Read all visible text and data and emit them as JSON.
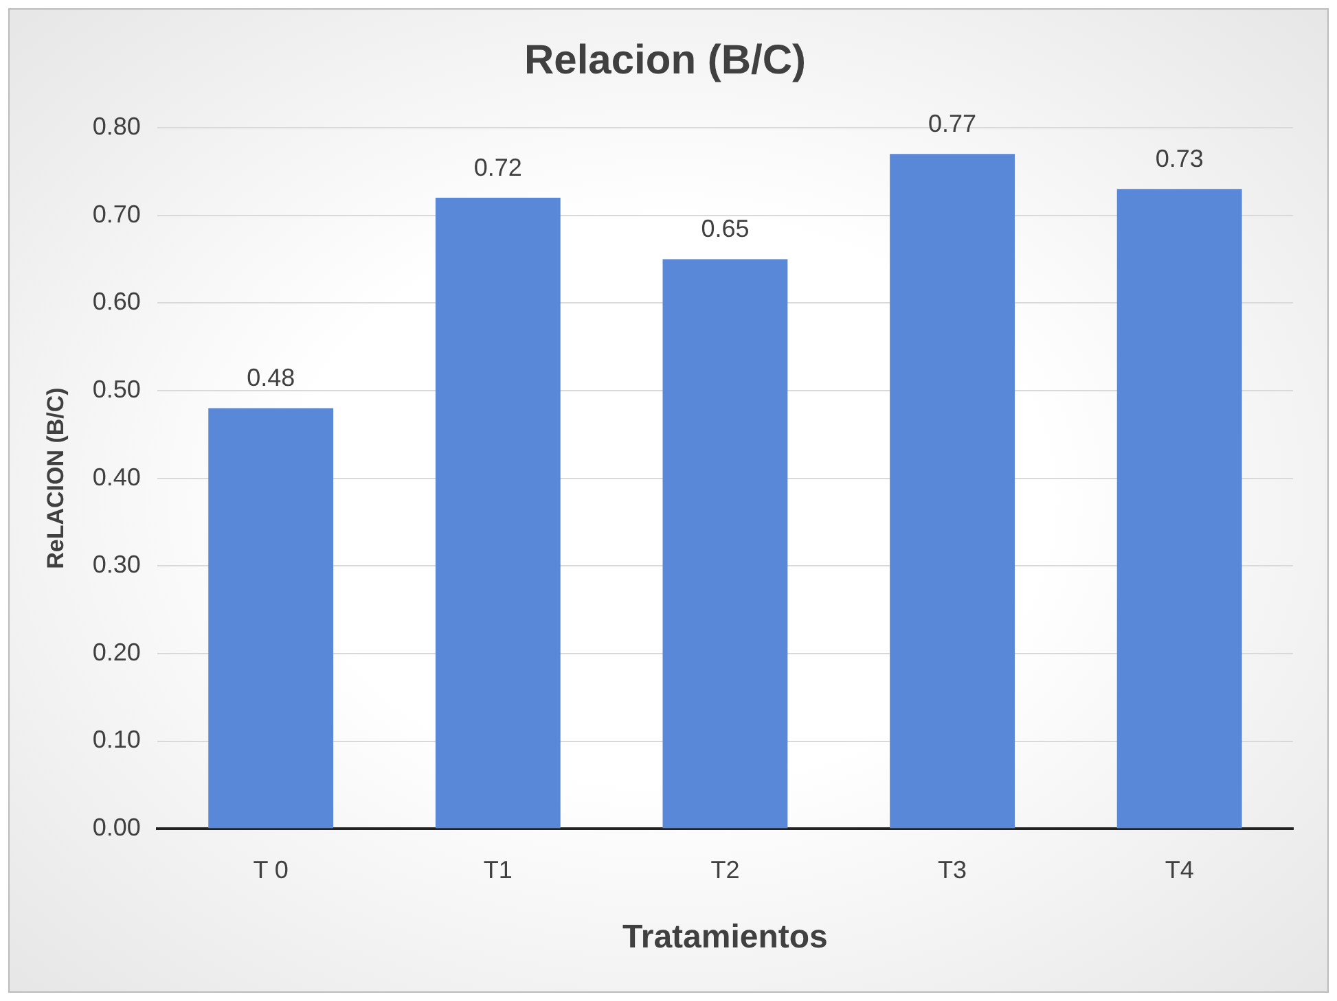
{
  "chart_data": {
    "type": "bar",
    "title": "Relacion (B/C)",
    "xlabel": "Tratamientos",
    "ylabel": "ReLACION (B/C)",
    "categories": [
      "T 0",
      "T1",
      "T2",
      "T3",
      "T4"
    ],
    "values": [
      0.48,
      0.72,
      0.65,
      0.77,
      0.73
    ],
    "color": "#5a88d8",
    "ylim": [
      0,
      0.8
    ],
    "yticks": [
      {
        "value": 0,
        "label": "0.00"
      },
      {
        "value": 0.1,
        "label": "0.10"
      },
      {
        "value": 0.2,
        "label": "0.20"
      },
      {
        "value": 0.3,
        "label": "0.30"
      },
      {
        "value": 0.4,
        "label": "0.40"
      },
      {
        "value": 0.5,
        "label": "0.50"
      },
      {
        "value": 0.6,
        "label": "0.60"
      },
      {
        "value": 0.7,
        "label": "0.70"
      },
      {
        "value": 0.8,
        "label": "0.80"
      }
    ],
    "grid": "y",
    "data_labels": true
  }
}
